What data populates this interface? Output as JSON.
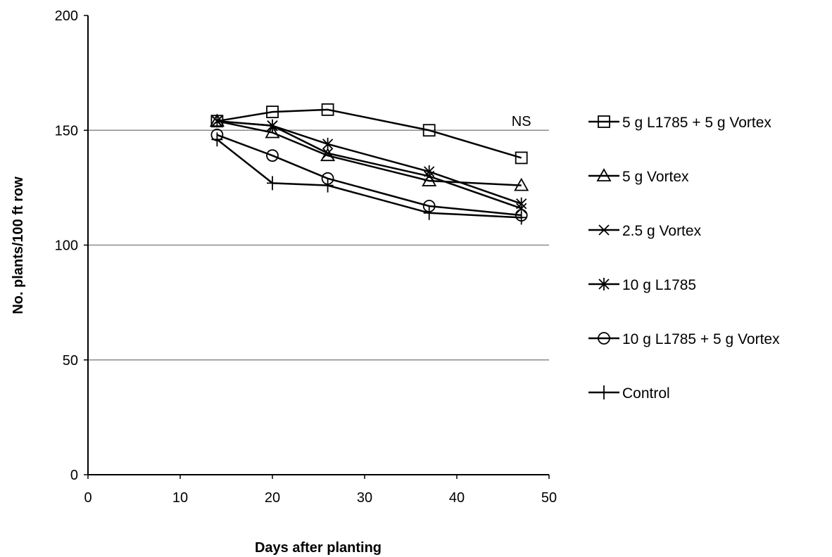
{
  "chart_data": {
    "type": "line",
    "title": "",
    "xlabel": "Days after planting",
    "ylabel": "No. plants/100 ft row",
    "xlim": [
      0,
      50
    ],
    "ylim": [
      0,
      200
    ],
    "xticks": [
      "0",
      "10",
      "20",
      "30",
      "40",
      "50"
    ],
    "yticks": [
      "0",
      "50",
      "100",
      "150",
      "200"
    ],
    "grid": "horizontal major gridlines",
    "legend_position": "right",
    "annotations": [
      {
        "text": "NS",
        "x": 47,
        "y": 154
      }
    ],
    "series": [
      {
        "name": "5 g L1785  + 5 g Vortex",
        "marker": "square",
        "x": [
          14,
          20,
          26,
          37,
          47
        ],
        "y": [
          154,
          158,
          159,
          150,
          138
        ]
      },
      {
        "name": "5 g Vortex",
        "marker": "triangle",
        "x": [
          14,
          20,
          26,
          37,
          47
        ],
        "y": [
          154,
          149,
          139,
          128,
          126
        ]
      },
      {
        "name": "2.5 g Vortex",
        "marker": "x",
        "x": [
          14,
          20,
          26,
          37,
          47
        ],
        "y": [
          154,
          152,
          140,
          130,
          116
        ]
      },
      {
        "name": "10 g L1785",
        "marker": "asterisk",
        "x": [
          14,
          20,
          26,
          37,
          47
        ],
        "y": [
          154,
          152,
          144,
          132,
          118
        ]
      },
      {
        "name": "10 g L1785 + 5 g Vortex",
        "marker": "circle",
        "x": [
          14,
          20,
          26,
          37,
          47
        ],
        "y": [
          148,
          139,
          129,
          117,
          113
        ]
      },
      {
        "name": "Control",
        "marker": "plus",
        "x": [
          14,
          20,
          26,
          37,
          47
        ],
        "y": [
          146,
          127,
          126,
          114,
          112
        ]
      }
    ]
  }
}
